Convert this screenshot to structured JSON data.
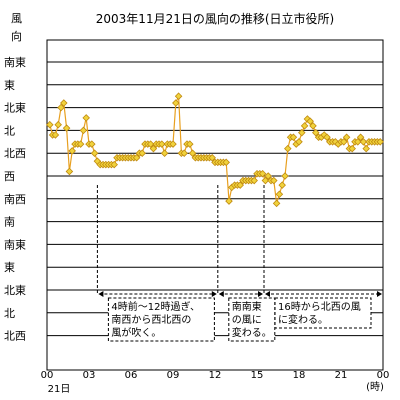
{
  "chart_data": {
    "type": "line",
    "title": "2003年11月21日の風向の推移(日立市役所)",
    "ylabel": [
      "風",
      "向"
    ],
    "xlabel": "(時)",
    "xsublabel": "21日",
    "x_ticks": [
      "00",
      "03",
      "06",
      "09",
      "12",
      "15",
      "18",
      "21",
      "00"
    ],
    "y_ticks": [
      "南東",
      "東",
      "北東",
      "北",
      "北西",
      "西",
      "南西",
      "南",
      "南東",
      "東",
      "北東",
      "北",
      "北西"
    ],
    "xlim": [
      0,
      24
    ],
    "grid": true,
    "line_color": "#e8a020",
    "marker_fill": "#f0d23c",
    "marker_edge": "#c08a10",
    "annotations": [
      {
        "text": [
          "4時前～12時過ぎ、",
          "南西から西北西の",
          "風が吹く。"
        ],
        "x_start": 3.6,
        "x_end": 12.2
      },
      {
        "text": [
          "南南東",
          "の風に",
          "変わる。"
        ],
        "x_start": 12.2,
        "x_end": 15.5
      },
      {
        "text": [
          "16時から北西の風",
          "に変わる。"
        ],
        "x_start": 15.5,
        "x_end": 24
      }
    ],
    "series": [
      {
        "x": [
          0.2,
          0.4,
          0.6,
          0.8,
          1.0,
          1.2,
          1.4,
          1.6,
          1.8,
          2.0,
          2.2,
          2.4,
          2.6,
          2.8,
          3.0,
          3.2,
          3.4,
          3.6,
          3.8,
          4.0,
          4.2,
          4.4,
          4.6,
          4.8,
          5.0,
          5.2,
          5.4,
          5.6,
          5.8,
          6.0,
          6.2,
          6.4,
          6.6,
          6.8,
          7.0,
          7.2,
          7.4,
          7.6,
          7.8,
          8.0,
          8.2,
          8.4,
          8.6,
          8.8,
          9.0,
          9.2,
          9.4,
          9.6,
          9.8,
          10.0,
          10.2,
          10.4,
          10.6,
          10.8,
          11.0,
          11.2,
          11.4,
          11.6,
          11.8,
          12.0,
          12.2,
          12.4,
          12.6,
          12.8,
          13.0,
          13.2,
          13.4,
          13.6,
          13.8,
          14.0,
          14.2,
          14.4,
          14.6,
          14.8,
          15.0,
          15.2,
          15.4,
          15.6,
          15.8,
          16.0,
          16.2,
          16.4,
          16.6,
          16.8,
          17.0,
          17.2,
          17.4,
          17.6,
          17.8,
          18.0,
          18.2,
          18.4,
          18.6,
          18.8,
          19.0,
          19.2,
          19.4,
          19.6,
          19.8,
          20.0,
          20.2,
          20.4,
          20.6,
          20.8,
          21.0,
          21.2,
          21.4,
          21.6,
          21.8,
          22.0,
          22.2,
          22.4,
          22.6,
          22.8,
          23.0,
          23.2,
          23.4,
          23.6,
          23.8
        ],
        "y": [
          2.75,
          3.2,
          3.2,
          2.75,
          2.0,
          1.8,
          2.9,
          4.8,
          3.9,
          3.6,
          3.6,
          3.6,
          3.0,
          2.45,
          3.6,
          3.6,
          4.0,
          4.35,
          4.5,
          4.5,
          4.5,
          4.5,
          4.5,
          4.5,
          4.2,
          4.2,
          4.2,
          4.2,
          4.2,
          4.2,
          4.2,
          4.2,
          4.0,
          4.0,
          3.6,
          3.6,
          3.6,
          3.8,
          3.6,
          3.6,
          3.6,
          4.0,
          3.6,
          3.6,
          3.6,
          1.8,
          1.5,
          4.0,
          4.0,
          3.6,
          3.6,
          4.0,
          4.2,
          4.2,
          4.2,
          4.2,
          4.2,
          4.2,
          4.2,
          4.4,
          4.4,
          4.4,
          4.4,
          4.4,
          6.1,
          5.5,
          5.4,
          5.4,
          5.4,
          5.2,
          5.2,
          5.2,
          5.2,
          5.2,
          4.9,
          4.9,
          4.9,
          5.2,
          5.0,
          5.2,
          5.2,
          6.2,
          5.8,
          5.4,
          5.0,
          3.8,
          3.3,
          3.3,
          3.6,
          3.5,
          3.1,
          2.8,
          2.5,
          2.6,
          2.8,
          3.1,
          3.3,
          3.3,
          3.2,
          3.3,
          3.5,
          3.5,
          3.5,
          3.6,
          3.5,
          3.5,
          3.3,
          3.8,
          3.8,
          3.5,
          3.5,
          3.3,
          3.5,
          3.8,
          3.5,
          3.5,
          3.5,
          3.5,
          3.5
        ]
      }
    ]
  }
}
